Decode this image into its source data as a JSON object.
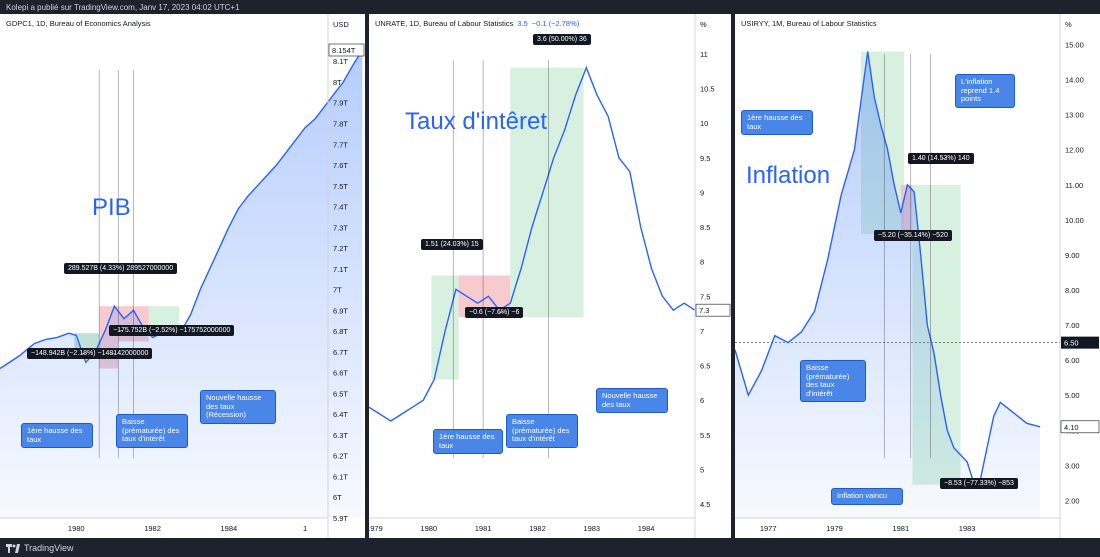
{
  "header": {
    "text": "Kolepi a publié sur TradingView.com, Janv 17, 2023 04:02 UTC+1"
  },
  "footer": {
    "brand": "TradingView"
  },
  "chart_data": [
    {
      "type": "area",
      "title": "GDPC1, 1D, Bureau of Economics Analysis",
      "unit_label": "USD",
      "overlay_label": "PIB",
      "current_value_label": "8.154T",
      "y_ticks": [
        "8.1T",
        "8T",
        "7.9T",
        "7.8T",
        "7.7T",
        "7.6T",
        "7.5T",
        "7.4T",
        "7.3T",
        "7.2T",
        "7.1T",
        "7T",
        "6.9T",
        "6.8T",
        "6.7T",
        "6.6T",
        "6.5T",
        "6.4T",
        "6.3T",
        "6.2T",
        "6.1T",
        "6T",
        "5.9T"
      ],
      "ylim": [
        5.9,
        8.154
      ],
      "x_ticks": [
        "1980",
        "1982",
        "1984",
        "1"
      ],
      "series": [
        {
          "x": [
            1978.0,
            1978.5,
            1978.9,
            1979.2,
            1979.5,
            1979.8,
            1980.0,
            1980.25,
            1980.5,
            1980.75,
            1981.0,
            1981.25,
            1981.5,
            1981.75,
            1982.0,
            1982.25,
            1982.5,
            1982.75,
            1983.0,
            1983.25,
            1983.5,
            1983.75,
            1984.0,
            1984.25,
            1984.5,
            1984.75,
            1985.0,
            1985.25,
            1985.5,
            1985.75,
            1986.0,
            1986.25,
            1986.5,
            1986.75,
            1987.0,
            1987.25,
            1987.5
          ],
          "values": [
            6.62,
            6.68,
            6.74,
            6.76,
            6.77,
            6.79,
            6.78,
            6.65,
            6.7,
            6.8,
            6.92,
            6.86,
            6.9,
            6.82,
            6.77,
            6.79,
            6.78,
            6.8,
            6.88,
            7.0,
            7.1,
            7.2,
            7.3,
            7.39,
            7.45,
            7.5,
            7.55,
            7.6,
            7.66,
            7.72,
            7.78,
            7.82,
            7.88,
            7.94,
            8.0,
            8.08,
            8.154
          ]
        }
      ],
      "measurements": [
        "289.527B (4.33%) 289527000000",
        "−1̶75.752B (−2.52%) −175752000000",
        "−148.942B (−2.1̶8%) −148̶142000000"
      ],
      "callouts": [
        "1ère hausse des taux",
        "Baisse (prématurée) des taux d'intérêt",
        "Nouvelle hausse des taux (Récession)"
      ]
    },
    {
      "type": "line",
      "title": "UNRATE, 1D, Bureau of Labour Statistics",
      "title_value": "3.5",
      "title_change": "−0.1 (−2.78%)",
      "unit_label": "%",
      "overlay_label": "Taux d'intêret",
      "current_value_label": "7.3",
      "y_ticks": [
        "11",
        "10.5",
        "10",
        "9.5",
        "9",
        "8.5",
        "8",
        "7.5",
        "7",
        "6.5",
        "6",
        "5.5",
        "5",
        "4.5"
      ],
      "ylim": [
        4.3,
        11.2
      ],
      "x_ticks": [
        "1979",
        "1980",
        "1981",
        "1982",
        "1983",
        "1984"
      ],
      "series": [
        {
          "x": [
            1978.9,
            1979.1,
            1979.3,
            1979.5,
            1979.7,
            1979.9,
            1980.1,
            1980.3,
            1980.5,
            1980.7,
            1980.9,
            1981.1,
            1981.3,
            1981.5,
            1981.7,
            1981.9,
            1982.1,
            1982.3,
            1982.5,
            1982.7,
            1982.9,
            1983.1,
            1983.3,
            1983.5,
            1983.7,
            1983.9,
            1984.1,
            1984.3,
            1984.5,
            1984.7,
            1984.9
          ],
          "values": [
            5.9,
            5.8,
            5.7,
            5.8,
            5.9,
            6.0,
            6.3,
            7.0,
            7.6,
            7.5,
            7.4,
            7.5,
            7.3,
            7.4,
            7.9,
            8.5,
            9.0,
            9.5,
            9.9,
            10.4,
            10.8,
            10.4,
            10.1,
            9.5,
            9.3,
            8.5,
            7.9,
            7.5,
            7.3,
            7.4,
            7.3
          ]
        }
      ],
      "measurements": [
        "3.6 (50.00%) 36",
        "1.51 (24.03%) 15",
        "−0.6 (−7.6̶%) −6"
      ],
      "callouts": [
        "1ère hausse des taux",
        "Baisse (prématurée) des taux d'intérêt",
        "Nouvelle hausse des taux"
      ]
    },
    {
      "type": "area",
      "title": "USIRYY, 1M, Bureau of Labour Statistics",
      "unit_label": "%",
      "overlay_label": "Inflation",
      "current_value_label": "4.10",
      "marker_value_label": "6.50",
      "y_ticks": [
        "15.00",
        "14.00",
        "13.00",
        "12.00",
        "11.00",
        "10.00",
        "9.00",
        "8.00",
        "7.00",
        "6.00",
        "5.00",
        "4.00",
        "3.00",
        "2.00"
      ],
      "ylim": [
        1.5,
        15.3
      ],
      "x_ticks": [
        "1977",
        "1979",
        "1981",
        "1983"
      ],
      "series": [
        {
          "x": [
            1976.0,
            1976.4,
            1976.8,
            1977.2,
            1977.6,
            1978.0,
            1978.4,
            1978.8,
            1979.2,
            1979.6,
            1980.0,
            1980.2,
            1980.4,
            1980.6,
            1980.8,
            1981.0,
            1981.2,
            1981.4,
            1981.6,
            1981.8,
            1982.0,
            1982.2,
            1982.4,
            1982.6,
            1982.8,
            1983.0,
            1983.2,
            1983.4,
            1983.6,
            1983.8,
            1984.0,
            1984.4,
            1984.8,
            1985.2
          ],
          "values": [
            6.3,
            5.0,
            5.7,
            6.7,
            6.5,
            6.8,
            7.4,
            8.9,
            10.7,
            12.0,
            14.8,
            13.5,
            12.7,
            12.0,
            11.0,
            10.2,
            11.0,
            10.8,
            9.0,
            7.0,
            6.2,
            5.0,
            4.0,
            3.5,
            3.3,
            3.1,
            2.5,
            2.6,
            3.5,
            4.4,
            4.8,
            4.5,
            4.2,
            4.1
          ]
        }
      ],
      "measurements": [
        "1.4̶0 (14.5̶3%) 140",
        "−5.20 (−35.14%) −520",
        "−8.53 (−77.33%) −853"
      ],
      "callouts": [
        "1ère hausse des taux",
        "L'inflation reprend 1.4 points",
        "Baisse (prématurée) des taux d'intérêt",
        "Inflation vaincu"
      ]
    }
  ]
}
